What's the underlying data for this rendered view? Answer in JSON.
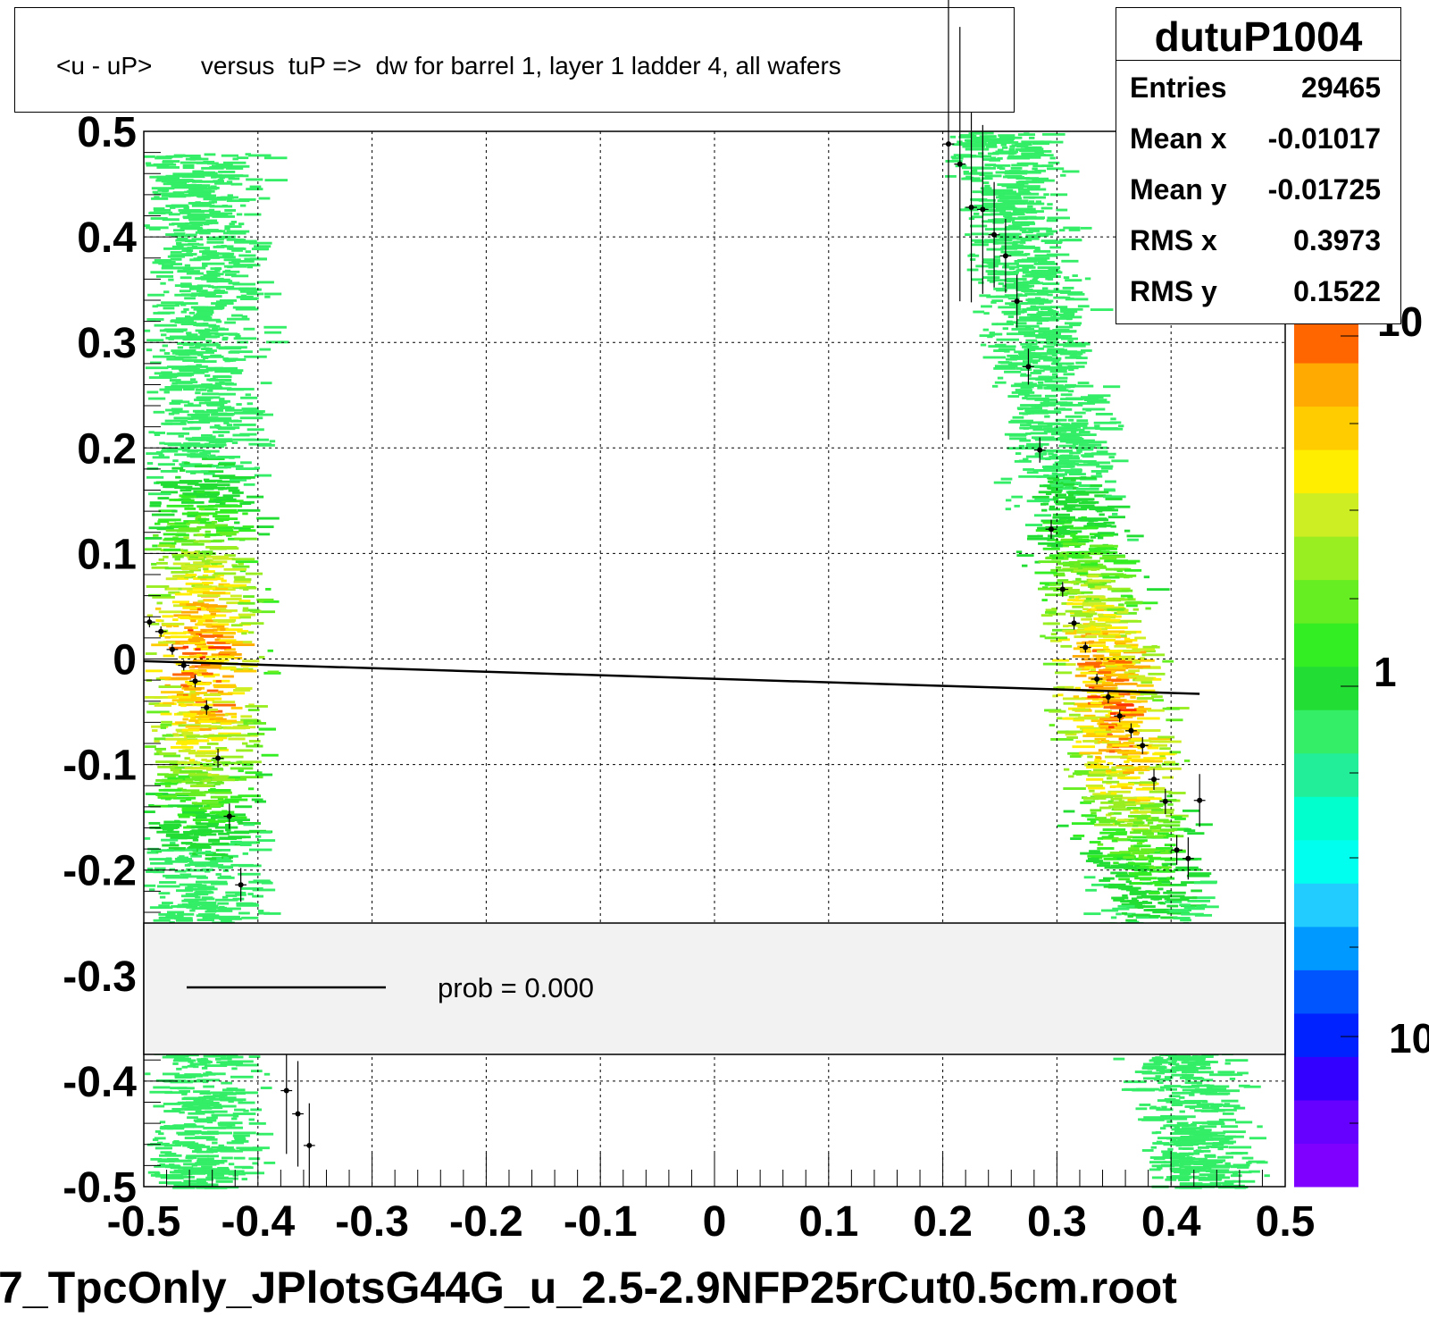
{
  "chart_data": {
    "type": "scatter",
    "histogram_title": "<u - uP>       versus  tuP =>  dw for barrel 1, layer 1 ladder 4, all wafers",
    "stats": {
      "name": "dutuP1004",
      "rows": [
        {
          "label": "Entries",
          "value": "29465"
        },
        {
          "label": "Mean x",
          "value": "-0.01017"
        },
        {
          "label": "Mean y",
          "value": "-0.01725"
        },
        {
          "label": "RMS x",
          "value": "0.3973"
        },
        {
          "label": "RMS y",
          "value": "0.1522"
        }
      ]
    },
    "xlim": [
      -0.5,
      0.5
    ],
    "ylim": [
      -0.5,
      0.5
    ],
    "x_ticks": [
      "-0.5",
      "-0.4",
      "-0.3",
      "-0.2",
      "-0.1",
      "0",
      "0.1",
      "0.2",
      "0.3",
      "0.4",
      "0.5"
    ],
    "y_ticks": [
      "0.5",
      "0.4",
      "0.3",
      "0.2",
      "0.1",
      "0",
      "-0.1",
      "-0.2",
      "-0.3",
      "-0.4",
      "-0.5"
    ],
    "xlabel": "7_TpcOnly_JPlotsG44G_u_2.5-2.9NFP25rCut0.5cm.root",
    "grid": true,
    "colorbar": {
      "scale": "log",
      "labels": [
        "10",
        "1",
        "10"
      ]
    },
    "fit_line": {
      "x": [
        -0.5,
        0.425
      ],
      "y": [
        -0.002,
        -0.033
      ]
    },
    "profile_points": [
      {
        "x": -0.495,
        "y": 0.035,
        "err": 0.005
      },
      {
        "x": -0.485,
        "y": 0.026,
        "err": 0.005
      },
      {
        "x": -0.475,
        "y": 0.009,
        "err": 0.005
      },
      {
        "x": -0.465,
        "y": -0.006,
        "err": 0.005
      },
      {
        "x": -0.455,
        "y": -0.021,
        "err": 0.006
      },
      {
        "x": -0.445,
        "y": -0.046,
        "err": 0.007
      },
      {
        "x": -0.435,
        "y": -0.094,
        "err": 0.009
      },
      {
        "x": -0.425,
        "y": -0.149,
        "err": 0.012
      },
      {
        "x": -0.415,
        "y": -0.214,
        "err": 0.016
      },
      {
        "x": -0.375,
        "y": -0.409,
        "err": 0.06
      },
      {
        "x": -0.365,
        "y": -0.431,
        "err": 0.05
      },
      {
        "x": -0.355,
        "y": -0.461,
        "err": 0.04
      },
      {
        "x": 0.205,
        "y": 0.488,
        "err": 0.28
      },
      {
        "x": 0.215,
        "y": 0.469,
        "err": 0.13
      },
      {
        "x": 0.225,
        "y": 0.428,
        "err": 0.09
      },
      {
        "x": 0.235,
        "y": 0.426,
        "err": 0.08
      },
      {
        "x": 0.245,
        "y": 0.402,
        "err": 0.05
      },
      {
        "x": 0.255,
        "y": 0.382,
        "err": 0.035
      },
      {
        "x": 0.265,
        "y": 0.339,
        "err": 0.025
      },
      {
        "x": 0.275,
        "y": 0.277,
        "err": 0.017
      },
      {
        "x": 0.285,
        "y": 0.198,
        "err": 0.012
      },
      {
        "x": 0.295,
        "y": 0.123,
        "err": 0.009
      },
      {
        "x": 0.305,
        "y": 0.066,
        "err": 0.007
      },
      {
        "x": 0.315,
        "y": 0.034,
        "err": 0.006
      },
      {
        "x": 0.325,
        "y": 0.011,
        "err": 0.005
      },
      {
        "x": 0.335,
        "y": -0.019,
        "err": 0.005
      },
      {
        "x": 0.345,
        "y": -0.036,
        "err": 0.006
      },
      {
        "x": 0.355,
        "y": -0.054,
        "err": 0.006
      },
      {
        "x": 0.365,
        "y": -0.068,
        "err": 0.007
      },
      {
        "x": 0.375,
        "y": -0.082,
        "err": 0.008
      },
      {
        "x": 0.385,
        "y": -0.114,
        "err": 0.01
      },
      {
        "x": 0.395,
        "y": -0.135,
        "err": 0.012
      },
      {
        "x": 0.405,
        "y": -0.181,
        "err": 0.014
      },
      {
        "x": 0.415,
        "y": -0.189,
        "err": 0.02
      },
      {
        "x": 0.425,
        "y": -0.134,
        "err": 0.025
      }
    ],
    "legend": {
      "entry": "prob = 0.000"
    }
  }
}
